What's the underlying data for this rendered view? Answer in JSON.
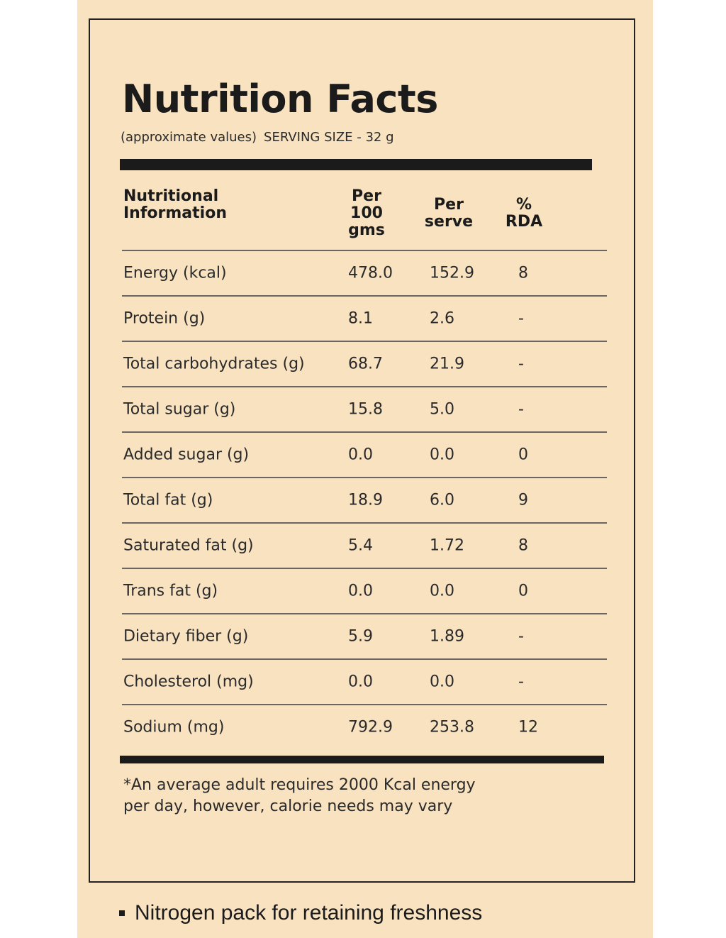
{
  "label": {
    "title": "Nutrition Facts",
    "approx_note": "(approximate values)",
    "serving_size": "SERVING SIZE - 32 g"
  },
  "table": {
    "headers": {
      "name": "Nutritional\nInformation",
      "per_100": "Per\n100\ngms",
      "per_serve": "Per\nserve",
      "rda": "%\nRDA"
    },
    "rows": [
      {
        "name": "Energy (kcal)",
        "per_100": "478.0",
        "per_serve": "152.9",
        "rda": "8"
      },
      {
        "name": "Protein (g)",
        "per_100": "8.1",
        "per_serve": "2.6",
        "rda": "-"
      },
      {
        "name": "Total carbohydrates (g)",
        "per_100": "68.7",
        "per_serve": "21.9",
        "rda": "-"
      },
      {
        "name": "Total sugar (g)",
        "per_100": "15.8",
        "per_serve": "5.0",
        "rda": "-"
      },
      {
        "name": "Added sugar (g)",
        "per_100": "0.0",
        "per_serve": "0.0",
        "rda": "0"
      },
      {
        "name": "Total fat (g)",
        "per_100": "18.9",
        "per_serve": "6.0",
        "rda": "9"
      },
      {
        "name": "Saturated fat (g)",
        "per_100": "5.4",
        "per_serve": "1.72",
        "rda": "8"
      },
      {
        "name": "Trans fat (g)",
        "per_100": "0.0",
        "per_serve": "0.0",
        "rda": "0"
      },
      {
        "name": "Dietary fiber (g)",
        "per_100": "5.9",
        "per_serve": "1.89",
        "rda": "-"
      },
      {
        "name": "Cholesterol (mg)",
        "per_100": "0.0",
        "per_serve": "0.0",
        "rda": "-"
      },
      {
        "name": "Sodium (mg)",
        "per_100": "792.9",
        "per_serve": "253.8",
        "rda": "12"
      }
    ]
  },
  "footnote": "*An average adult requires 2000 Kcal energy per day, however, calorie needs may vary",
  "bullet": "Nitrogen pack for retaining freshness",
  "colors": {
    "background": "#f8e2c0",
    "ink": "#1b1b1b",
    "rule": "#6b6661"
  }
}
